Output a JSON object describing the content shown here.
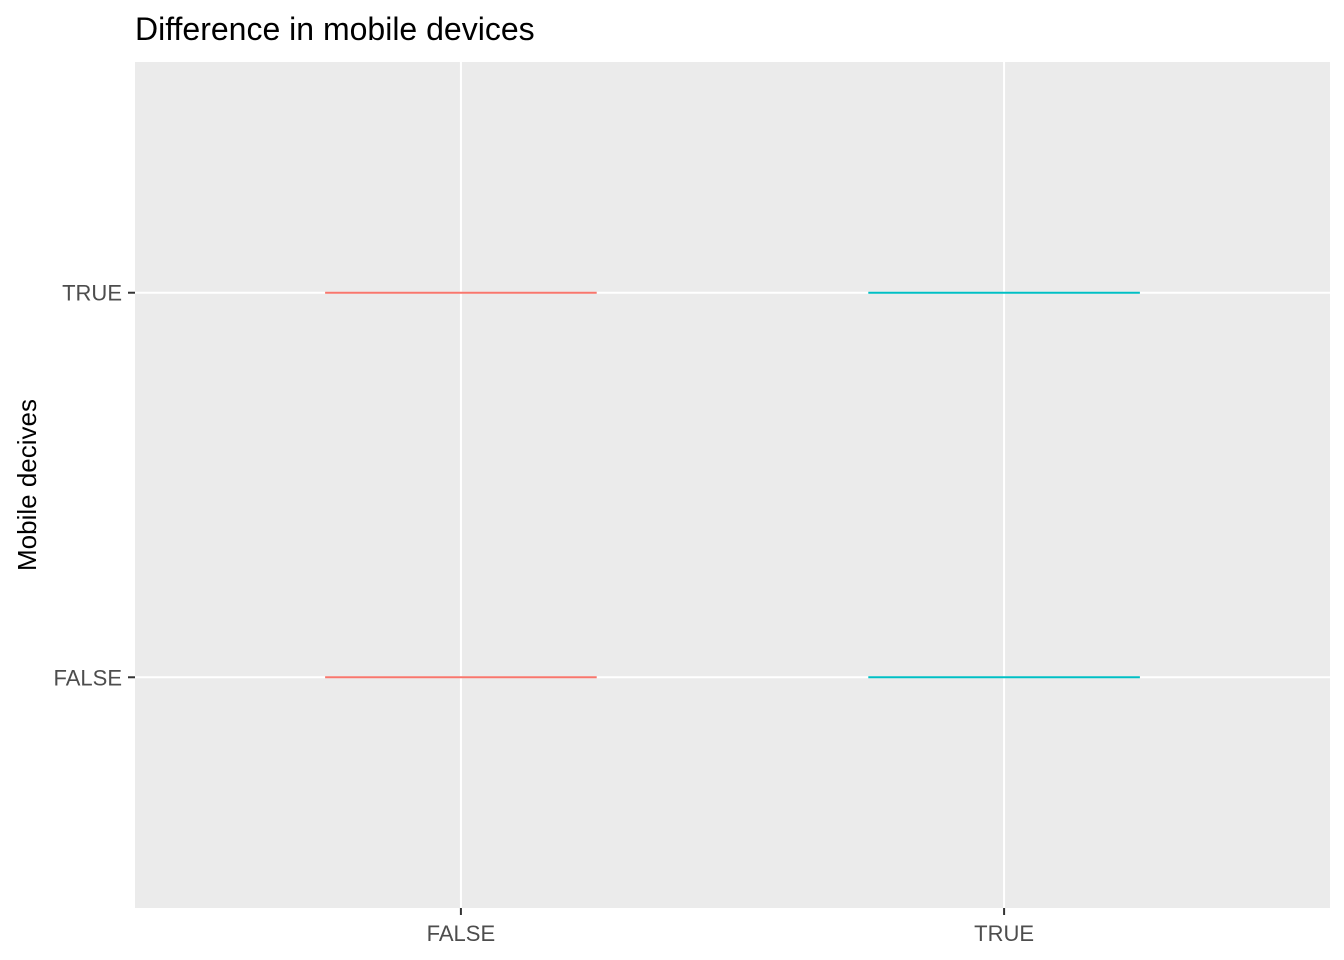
{
  "chart_data": {
    "type": "line",
    "title": "Difference in mobile devices",
    "xlabel": "",
    "ylabel": "Mobile decives",
    "x_categories": [
      "FALSE",
      "TRUE"
    ],
    "y_categories": [
      "FALSE",
      "TRUE"
    ],
    "segments": [
      {
        "x": "FALSE",
        "y": "TRUE",
        "color": "#F8766D"
      },
      {
        "x": "FALSE",
        "y": "FALSE",
        "color": "#F8766D"
      },
      {
        "x": "TRUE",
        "y": "TRUE",
        "color": "#00BFC4"
      },
      {
        "x": "TRUE",
        "y": "FALSE",
        "color": "#00BFC4"
      }
    ],
    "grid": true,
    "legend": "none",
    "panel_background": "#EBEBEB",
    "grid_color": "#FFFFFF"
  }
}
